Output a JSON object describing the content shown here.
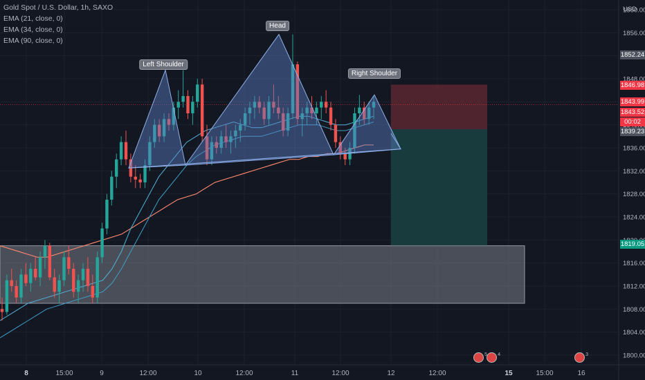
{
  "legend": {
    "title": "Gold Spot / U.S. Dollar, 1h, SAXO",
    "ema1": "EMA (21, close, 0)",
    "ema2": "EMA (34, close, 0)",
    "ema3": "EMA (90, close, 0)"
  },
  "currency": "USD",
  "pattern_labels": {
    "left_shoulder": "Left Shoulder",
    "head": "Head",
    "right_shoulder": "Right Shoulder"
  },
  "price_tags": {
    "p1852": "1852.24",
    "p1846": "1846.98",
    "p1843a": "1843.99",
    "p1843b": "1843.52",
    "countdown": "00:02",
    "p1839": "1839.23",
    "p1819": "1819.05"
  },
  "colors": {
    "background": "#131722",
    "bull": "#26a69a",
    "bear": "#ef5350",
    "pattern_fill": "#5b7fc4",
    "ema_slow": "#f2836b",
    "ema_fast": "#4fb3d9",
    "stop_zone": "#5b2730",
    "target_zone": "#1a4343",
    "support_zone": "#787b86"
  },
  "events": [
    {
      "label": "5"
    },
    {
      "label": "4"
    },
    {
      "label": "3"
    }
  ],
  "chart_data": {
    "type": "candlestick",
    "symbol": "Gold Spot / U.S. Dollar",
    "timeframe": "1h",
    "y_axis": {
      "ticks": [
        1800,
        1804,
        1808,
        1812,
        1816,
        1820,
        1824,
        1828,
        1832,
        1836,
        1840,
        1844,
        1848,
        1852,
        1856,
        1860
      ],
      "ylim": [
        1799,
        1861
      ]
    },
    "x_axis": {
      "ticks": [
        {
          "label": "8",
          "bold": true
        },
        {
          "label": "15:00",
          "bold": false
        },
        {
          "label": "9",
          "bold": false
        },
        {
          "label": "12:00",
          "bold": false
        },
        {
          "label": "10",
          "bold": false
        },
        {
          "label": "12:00",
          "bold": false
        },
        {
          "label": "11",
          "bold": false
        },
        {
          "label": "12:00",
          "bold": false
        },
        {
          "label": "12",
          "bold": false
        },
        {
          "label": "12:00",
          "bold": false
        },
        {
          "label": "15",
          "bold": true
        },
        {
          "label": "15:00",
          "bold": false
        },
        {
          "label": "16",
          "bold": false
        }
      ]
    },
    "pattern": {
      "name": "Head and Shoulders",
      "left_shoulder": 1849.5,
      "head": 1855.7,
      "right_shoulder": 1845.2,
      "neckline": [
        1832.5,
        1833.0,
        1835.8
      ]
    },
    "zones": {
      "stop_top": 1846.98,
      "entry": 1839.23,
      "target": 1819.05,
      "support_top": 1819.0,
      "support_bottom": 1809.0
    },
    "candles": [
      [
        1808,
        1810,
        1806,
        1807.5
      ],
      [
        1807.5,
        1814,
        1807,
        1813
      ],
      [
        1813,
        1815,
        1811,
        1812
      ],
      [
        1812,
        1813,
        1809,
        1810
      ],
      [
        1810,
        1815,
        1809,
        1814
      ],
      [
        1814,
        1816,
        1812,
        1812.5
      ],
      [
        1812.5,
        1816,
        1811,
        1815
      ],
      [
        1815,
        1817,
        1813,
        1813.5
      ],
      [
        1813.5,
        1818,
        1812,
        1817
      ],
      [
        1817,
        1820,
        1815,
        1819
      ],
      [
        1819,
        1819.5,
        1813,
        1813.5
      ],
      [
        1813.5,
        1815,
        1810,
        1811
      ],
      [
        1811,
        1814,
        1809,
        1813
      ],
      [
        1813,
        1818,
        1812,
        1817
      ],
      [
        1817,
        1819,
        1814,
        1815
      ],
      [
        1815,
        1816,
        1810,
        1811
      ],
      [
        1811,
        1814,
        1809,
        1813
      ],
      [
        1813,
        1816,
        1811,
        1815
      ],
      [
        1815,
        1817,
        1811,
        1812
      ],
      [
        1812,
        1814,
        1809,
        1810
      ],
      [
        1810,
        1818,
        1809,
        1817
      ],
      [
        1817,
        1823,
        1816,
        1822
      ],
      [
        1822,
        1828,
        1821,
        1827
      ],
      [
        1827,
        1832,
        1826,
        1831
      ],
      [
        1831,
        1835,
        1829,
        1834
      ],
      [
        1834,
        1838,
        1833,
        1837
      ],
      [
        1837,
        1839,
        1833,
        1834
      ],
      [
        1834,
        1835,
        1830,
        1831
      ],
      [
        1831,
        1833,
        1829,
        1830.5
      ],
      [
        1830.5,
        1831.5,
        1829,
        1830
      ],
      [
        1830,
        1834,
        1829,
        1833
      ],
      [
        1833,
        1838,
        1832,
        1837
      ],
      [
        1837,
        1841,
        1836,
        1840
      ],
      [
        1840,
        1841,
        1837,
        1838
      ],
      [
        1838,
        1842,
        1837,
        1841
      ],
      [
        1841,
        1842,
        1839,
        1840
      ],
      [
        1840,
        1844,
        1839,
        1843
      ],
      [
        1843,
        1846,
        1841,
        1844
      ],
      [
        1844,
        1849.5,
        1843,
        1845
      ],
      [
        1845,
        1846,
        1841,
        1842
      ],
      [
        1842,
        1845,
        1840,
        1844
      ],
      [
        1844,
        1848,
        1843,
        1847
      ],
      [
        1847,
        1848,
        1837,
        1838
      ],
      [
        1838,
        1840,
        1833,
        1834
      ],
      [
        1834,
        1838,
        1833,
        1837
      ],
      [
        1837,
        1838,
        1835,
        1836
      ],
      [
        1836,
        1839,
        1835,
        1838
      ],
      [
        1838,
        1840,
        1836,
        1837
      ],
      [
        1837,
        1839,
        1835,
        1838
      ],
      [
        1838,
        1840,
        1836,
        1839
      ],
      [
        1839,
        1841,
        1837,
        1840
      ],
      [
        1840,
        1843,
        1839,
        1842
      ],
      [
        1842,
        1844,
        1840,
        1843
      ],
      [
        1843,
        1845,
        1841,
        1844
      ],
      [
        1844,
        1845,
        1842,
        1843
      ],
      [
        1843,
        1844,
        1840,
        1841
      ],
      [
        1841,
        1845,
        1840,
        1844
      ],
      [
        1844,
        1847,
        1842,
        1843
      ],
      [
        1843,
        1845,
        1841,
        1842
      ],
      [
        1842,
        1843,
        1838,
        1839
      ],
      [
        1839,
        1843,
        1838,
        1842
      ],
      [
        1842,
        1855.7,
        1841,
        1850.5
      ],
      [
        1850.5,
        1851,
        1840,
        1841
      ],
      [
        1841,
        1843,
        1838,
        1842
      ],
      [
        1842,
        1844,
        1840,
        1843
      ],
      [
        1843,
        1845,
        1841,
        1842
      ],
      [
        1842,
        1844,
        1840,
        1843
      ],
      [
        1843,
        1845,
        1841,
        1844
      ],
      [
        1844,
        1846,
        1842,
        1843
      ],
      [
        1843,
        1844,
        1839,
        1840
      ],
      [
        1840,
        1841,
        1836,
        1837
      ],
      [
        1837,
        1838,
        1834,
        1835
      ],
      [
        1835,
        1836,
        1833,
        1834
      ],
      [
        1834,
        1837,
        1833,
        1836
      ],
      [
        1836,
        1843,
        1835,
        1842
      ],
      [
        1842,
        1845.2,
        1840,
        1843
      ],
      [
        1843,
        1844,
        1840,
        1841
      ],
      [
        1841,
        1844,
        1840,
        1843
      ],
      [
        1843,
        1845,
        1841,
        1844
      ]
    ],
    "ema_fast": [
      1806,
      1807,
      1808,
      1809,
      1809.5,
      1810,
      1810.5,
      1811,
      1811.5,
      1812,
      1812.5,
      1813,
      1815,
      1818,
      1822,
      1825,
      1828,
      1831,
      1833,
      1835,
      1837,
      1838,
      1839,
      1839.5,
      1840,
      1840.5,
      1840,
      1839.5,
      1839.5,
      1840,
      1840.5,
      1841,
      1841.5,
      1841.5,
      1841,
      1840.5,
      1840,
      1840,
      1840.5,
      1841,
      1841.5
    ],
    "ema_mid": [
      1803,
      1804,
      1805,
      1806,
      1807,
      1808,
      1808.5,
      1809,
      1809.5,
      1810,
      1810.5,
      1811,
      1812.5,
      1815,
      1818,
      1821,
      1824,
      1827,
      1829,
      1831,
      1833,
      1834.5,
      1835.5,
      1836.5,
      1837,
      1837.5,
      1838,
      1838,
      1838,
      1838.5,
      1839,
      1839.5,
      1840,
      1840,
      1840,
      1839.5,
      1839,
      1839,
      1839.5,
      1840,
      1840.5
    ],
    "ema_slow": [
      1819,
      1818.5,
      1818,
      1817.5,
      1817,
      1817,
      1817.5,
      1818,
      1818.5,
      1819,
      1819.5,
      1820,
      1820.5,
      1821,
      1822,
      1823,
      1824,
      1825,
      1826,
      1827,
      1827.5,
      1828,
      1829,
      1830,
      1830.5,
      1831,
      1831.5,
      1832,
      1832.5,
      1833,
      1833.5,
      1834,
      1834,
      1834.5,
      1834.5,
      1835,
      1835,
      1835.5,
      1836,
      1836.5,
      1836.5
    ]
  }
}
